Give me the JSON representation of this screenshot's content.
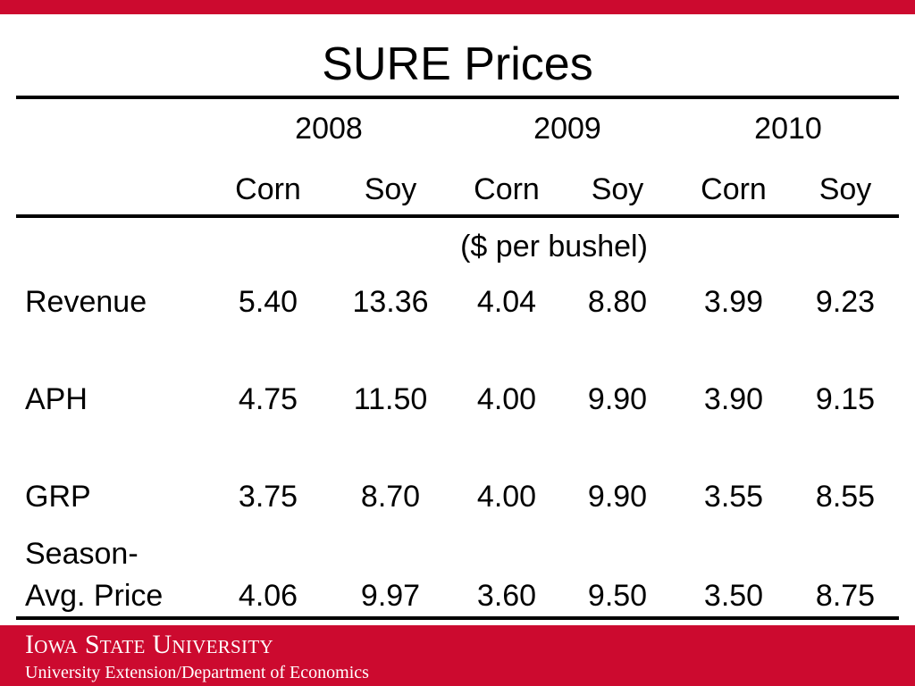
{
  "slide": {
    "title": "SURE Prices",
    "unit_note": "($ per bushel)"
  },
  "table": {
    "years": [
      "2008",
      "2009",
      "2010"
    ],
    "crops": [
      "Corn",
      "Soy",
      "Corn",
      "Soy",
      "Corn",
      "Soy"
    ],
    "rows": [
      {
        "label": "Revenue",
        "label2": "",
        "values": [
          "5.40",
          "13.36",
          "4.04",
          "8.80",
          "3.99",
          "9.23"
        ]
      },
      {
        "label": "APH",
        "label2": "",
        "values": [
          "4.75",
          "11.50",
          "4.00",
          "9.90",
          "3.90",
          "9.15"
        ]
      },
      {
        "label": "GRP",
        "label2": "",
        "values": [
          "3.75",
          "8.70",
          "4.00",
          "9.90",
          "3.55",
          "8.55"
        ]
      },
      {
        "label": "Season-",
        "label2": "Avg. Price",
        "values": [
          "4.06",
          "9.97",
          "3.60",
          "9.50",
          "3.50",
          "8.75"
        ]
      }
    ]
  },
  "footer": {
    "university": "Iowa State University",
    "department": "University Extension/Department of Economics"
  },
  "colors": {
    "brand_red": "#cc0a2f"
  }
}
